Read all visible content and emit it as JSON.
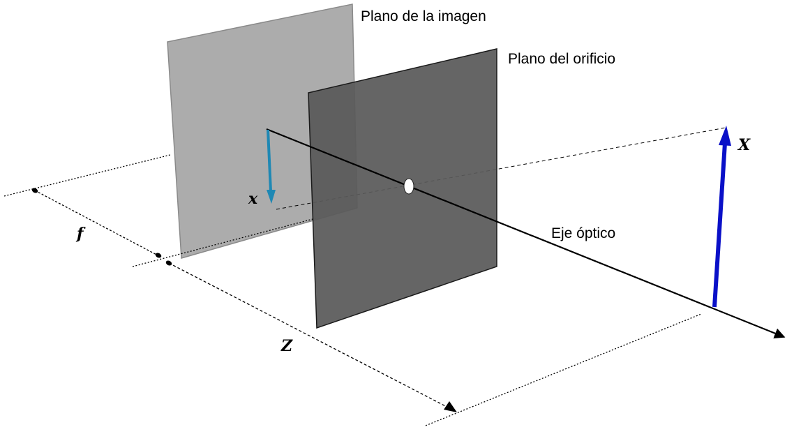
{
  "labels": {
    "image_plane": "Plano de la imagen",
    "pinhole_plane": "Plano del orificio",
    "optical_axis": "Eje óptico",
    "image_point": "x",
    "object_point": "X",
    "focal_length": "f",
    "object_distance": "Z"
  },
  "colors": {
    "image_plane_fill": "#a8a8a8",
    "pinhole_plane_fill": "#595959",
    "image_arrow": "#1e88b4",
    "object_arrow": "#0a10c8",
    "lines": "#000000"
  }
}
